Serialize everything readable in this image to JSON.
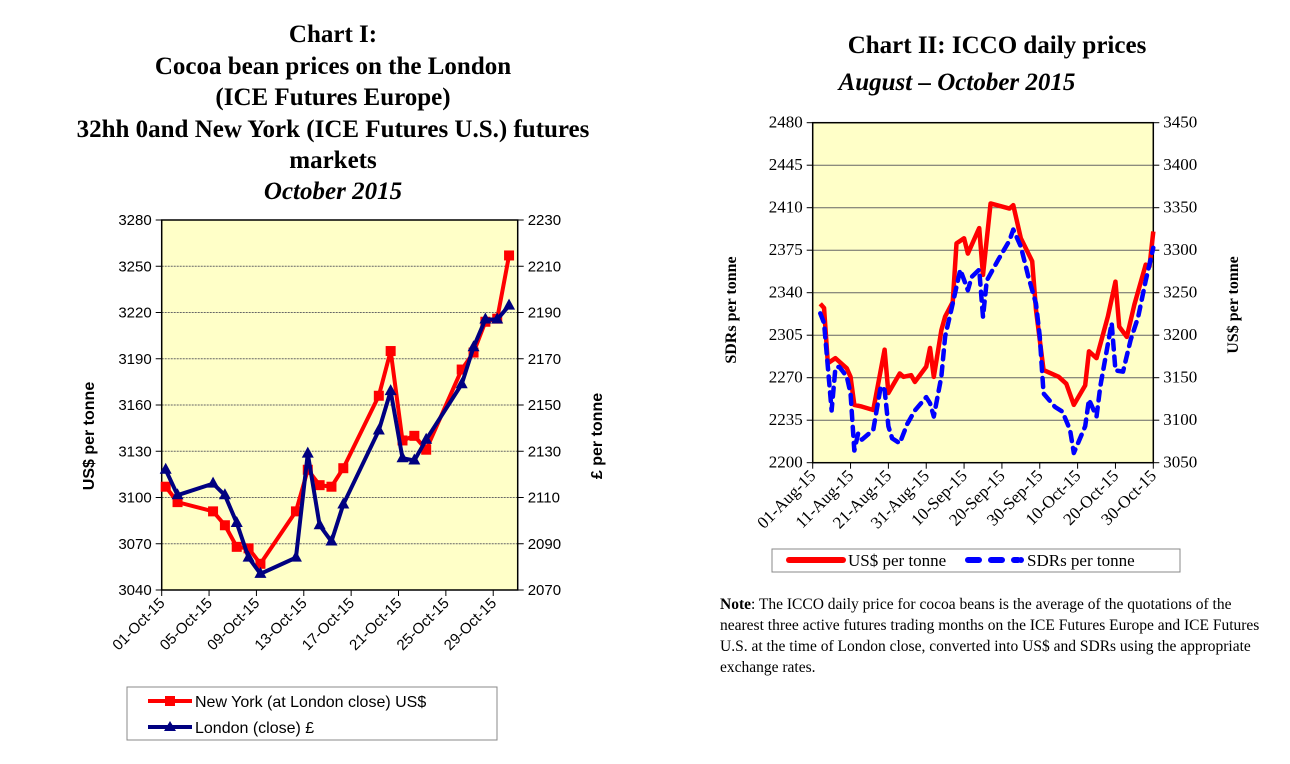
{
  "colors": {
    "plot_bg": "#FFFFC8",
    "red": "#FF0000",
    "navy": "#000080",
    "blue": "#0000FF"
  },
  "chart_data": [
    {
      "type": "line",
      "title": [
        "Chart I:",
        "Cocoa bean prices on the London",
        "(ICE Futures Europe)",
        "32hh 0and New York (ICE Futures U.S.) futures",
        "markets"
      ],
      "subtitle": "October 2015",
      "ylabel": "US$ per tonne",
      "y2label": "£ per tonne",
      "ylim": [
        3040,
        3280
      ],
      "y_ticks": [
        "3040",
        "3070",
        "3100",
        "3130",
        "3160",
        "3190",
        "3220",
        "3250",
        "3280"
      ],
      "y2lim": [
        2070,
        2230
      ],
      "y2_ticks": [
        "2070",
        "2090",
        "2110",
        "2130",
        "2150",
        "2170",
        "2190",
        "2210",
        "2230"
      ],
      "x_ticks": [
        "01-Oct-15",
        "05-Oct-15",
        "09-Oct-15",
        "13-Oct-15",
        "17-Oct-15",
        "21-Oct-15",
        "25-Oct-15",
        "29-Oct-15"
      ],
      "grid": true,
      "legend_position": "bottom",
      "x": [
        "2015-10-01",
        "2015-10-02",
        "2015-10-05",
        "2015-10-06",
        "2015-10-07",
        "2015-10-08",
        "2015-10-09",
        "2015-10-12",
        "2015-10-13",
        "2015-10-14",
        "2015-10-15",
        "2015-10-16",
        "2015-10-19",
        "2015-10-20",
        "2015-10-21",
        "2015-10-22",
        "2015-10-23",
        "2015-10-26",
        "2015-10-27",
        "2015-10-28",
        "2015-10-29",
        "2015-10-30"
      ],
      "series": [
        {
          "name": "New York (at London close) US$",
          "axis": "left",
          "marker": "square",
          "color": "#FF0000",
          "values": [
            3107,
            3097,
            3091,
            3082,
            3068,
            3067,
            3057,
            3091,
            3118,
            3108,
            3107,
            3119,
            3166,
            3195,
            3137,
            3140,
            3131,
            3183,
            3194,
            3214,
            3216,
            3257
          ]
        },
        {
          "name": "London (close) £",
          "axis": "right",
          "marker": "triangle",
          "color": "#000080",
          "values": [
            2122,
            2111,
            2116,
            2111,
            2099,
            2084,
            2077,
            2084,
            2129,
            2098,
            2091,
            2107,
            2139,
            2156,
            2127,
            2126,
            2135,
            2159,
            2175,
            2187,
            2187,
            2193
          ]
        }
      ]
    },
    {
      "type": "line",
      "title": "Chart II:  ICCO daily prices",
      "subtitle": "August – October 2015",
      "ylabel": "SDRs per tonne",
      "y2label": "US$ per tonne",
      "ylim": [
        2200,
        2480
      ],
      "y_ticks": [
        "2200",
        "2235",
        "2270",
        "2305",
        "2340",
        "2375",
        "2410",
        "2445",
        "2480"
      ],
      "y2lim": [
        3050,
        3450
      ],
      "y2_ticks": [
        "3050",
        "3100",
        "3150",
        "3200",
        "3250",
        "3300",
        "3350",
        "3400",
        "3450"
      ],
      "x_ticks": [
        "01-Aug-15",
        "11-Aug-15",
        "21-Aug-15",
        "31-Aug-15",
        "10-Sep-15",
        "20-Sep-15",
        "30-Sep-15",
        "10-Oct-15",
        "20-Oct-15",
        "30-Oct-15"
      ],
      "xlim": [
        "2015-08-01",
        "2015-10-30"
      ],
      "grid": true,
      "legend_position": "bottom",
      "series": [
        {
          "name": "US$ per tonne",
          "axis": "right",
          "style": "solid",
          "color": "#FF0000",
          "points": [
            [
              "2015-08-03",
              3237
            ],
            [
              "2015-08-04",
              3232
            ],
            [
              "2015-08-05",
              3167
            ],
            [
              "2015-08-07",
              3173
            ],
            [
              "2015-08-10",
              3161
            ],
            [
              "2015-08-11",
              3151
            ],
            [
              "2015-08-12",
              3118
            ],
            [
              "2015-08-14",
              3116
            ],
            [
              "2015-08-17",
              3112
            ],
            [
              "2015-08-20",
              3183
            ],
            [
              "2015-08-21",
              3132
            ],
            [
              "2015-08-24",
              3155
            ],
            [
              "2015-08-25",
              3151
            ],
            [
              "2015-08-27",
              3153
            ],
            [
              "2015-08-28",
              3145
            ],
            [
              "2015-08-31",
              3163
            ],
            [
              "2015-09-01",
              3185
            ],
            [
              "2015-09-02",
              3151
            ],
            [
              "2015-09-04",
              3206
            ],
            [
              "2015-09-05",
              3222
            ],
            [
              "2015-09-07",
              3239
            ],
            [
              "2015-09-08",
              3308
            ],
            [
              "2015-09-10",
              3314
            ],
            [
              "2015-09-11",
              3296
            ],
            [
              "2015-09-14",
              3326
            ],
            [
              "2015-09-15",
              3271
            ],
            [
              "2015-09-17",
              3355
            ],
            [
              "2015-09-22",
              3349
            ],
            [
              "2015-09-23",
              3353
            ],
            [
              "2015-09-25",
              3314
            ],
            [
              "2015-09-28",
              3287
            ],
            [
              "2015-09-29",
              3230
            ],
            [
              "2015-10-01",
              3159
            ],
            [
              "2015-10-05",
              3151
            ],
            [
              "2015-10-07",
              3143
            ],
            [
              "2015-10-09",
              3118
            ],
            [
              "2015-10-12",
              3141
            ],
            [
              "2015-10-13",
              3181
            ],
            [
              "2015-10-15",
              3173
            ],
            [
              "2015-10-18",
              3222
            ],
            [
              "2015-10-20",
              3263
            ],
            [
              "2015-10-21",
              3210
            ],
            [
              "2015-10-23",
              3198
            ],
            [
              "2015-10-25",
              3236
            ],
            [
              "2015-10-28",
              3283
            ],
            [
              "2015-10-29",
              3281
            ],
            [
              "2015-10-30",
              3322
            ]
          ]
        },
        {
          "name": "SDRs per tonne",
          "axis": "left",
          "style": "dashed",
          "color": "#0000FF",
          "points": [
            [
              "2015-08-03",
              2323
            ],
            [
              "2015-08-04",
              2315
            ],
            [
              "2015-08-05",
              2279
            ],
            [
              "2015-08-06",
              2243
            ],
            [
              "2015-08-07",
              2278
            ],
            [
              "2015-08-08",
              2279
            ],
            [
              "2015-08-10",
              2271
            ],
            [
              "2015-08-11",
              2257
            ],
            [
              "2015-08-12",
              2210
            ],
            [
              "2015-08-13",
              2224
            ],
            [
              "2015-08-14",
              2219
            ],
            [
              "2015-08-17",
              2227
            ],
            [
              "2015-08-19",
              2263
            ],
            [
              "2015-08-20",
              2260
            ],
            [
              "2015-08-21",
              2230
            ],
            [
              "2015-08-22",
              2220
            ],
            [
              "2015-08-24",
              2216
            ],
            [
              "2015-08-26",
              2232
            ],
            [
              "2015-08-28",
              2243
            ],
            [
              "2015-08-31",
              2254
            ],
            [
              "2015-09-01",
              2249
            ],
            [
              "2015-09-02",
              2238
            ],
            [
              "2015-09-04",
              2271
            ],
            [
              "2015-09-05",
              2304
            ],
            [
              "2015-09-07",
              2331
            ],
            [
              "2015-09-09",
              2359
            ],
            [
              "2015-09-11",
              2342
            ],
            [
              "2015-09-12",
              2353
            ],
            [
              "2015-09-14",
              2359
            ],
            [
              "2015-09-15",
              2320
            ],
            [
              "2015-09-16",
              2350
            ],
            [
              "2015-09-19",
              2367
            ],
            [
              "2015-09-22",
              2383
            ],
            [
              "2015-09-23",
              2392
            ],
            [
              "2015-09-25",
              2378
            ],
            [
              "2015-09-27",
              2353
            ],
            [
              "2015-09-29",
              2331
            ],
            [
              "2015-09-30",
              2304
            ],
            [
              "2015-10-01",
              2257
            ],
            [
              "2015-10-04",
              2246
            ],
            [
              "2015-10-06",
              2242
            ],
            [
              "2015-10-08",
              2227
            ],
            [
              "2015-10-09",
              2208
            ],
            [
              "2015-10-12",
              2230
            ],
            [
              "2015-10-13",
              2252
            ],
            [
              "2015-10-15",
              2238
            ],
            [
              "2015-10-16",
              2263
            ],
            [
              "2015-10-19",
              2315
            ],
            [
              "2015-10-20",
              2276
            ],
            [
              "2015-10-22",
              2275
            ],
            [
              "2015-10-24",
              2301
            ],
            [
              "2015-10-26",
              2320
            ],
            [
              "2015-10-28",
              2350
            ],
            [
              "2015-10-30",
              2377
            ]
          ]
        }
      ]
    }
  ],
  "note": {
    "label": "Note",
    "text": ": The ICCO daily price for cocoa beans is the average of the quotations of the nearest three active futures trading months on the ICE Futures Europe and ICE Futures U.S. at the time of London close, converted into US$ and SDRs using the appropriate exchange rates."
  }
}
